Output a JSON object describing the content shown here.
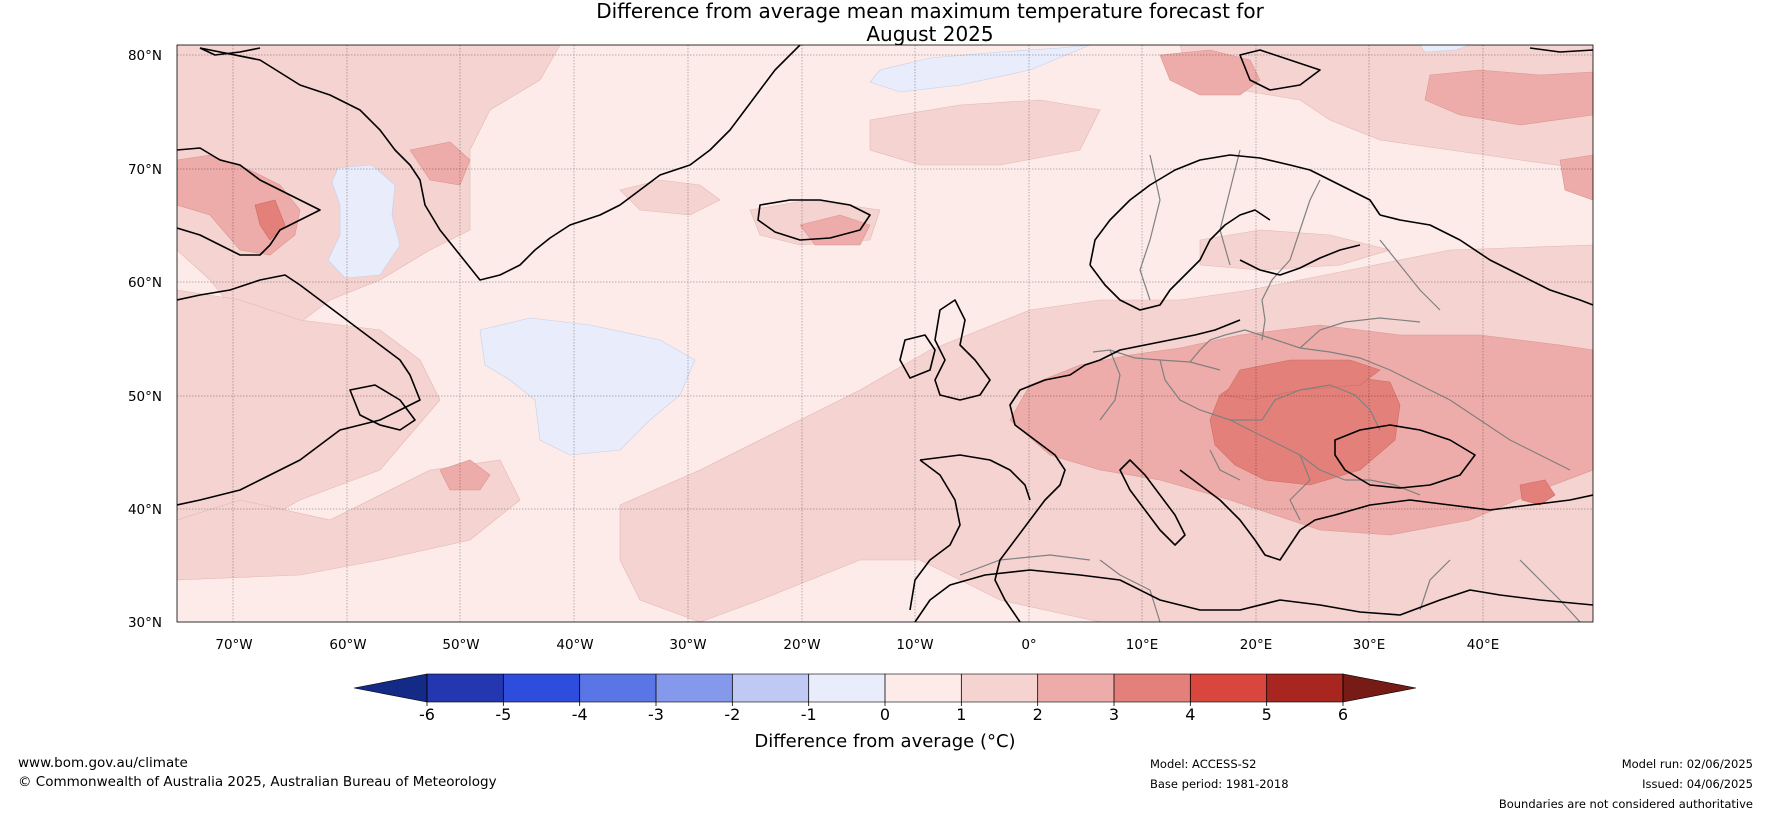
{
  "title": {
    "line1": "Difference from average mean maximum temperature forecast for",
    "line2": "August 2025"
  },
  "map": {
    "lat_labels": [
      "80°N",
      "70°N",
      "60°N",
      "50°N",
      "40°N",
      "30°N"
    ],
    "lon_labels": [
      "70°W",
      "60°W",
      "50°W",
      "40°W",
      "30°W",
      "20°W",
      "10°W",
      "0°",
      "10°E",
      "20°E",
      "30°E",
      "40°E"
    ],
    "colors": {
      "cool_-1_0": "#e8ecfb",
      "warm_0_1": "#fcebe9",
      "warm_1_2": "#f5d3d1",
      "warm_2_3": "#edaca9",
      "warm_3_4": "#e4807a",
      "coast": "#000000",
      "border": "#808080"
    }
  },
  "colorbar": {
    "title": "Difference from average (°C)",
    "ticks": [
      "-6",
      "-5",
      "-4",
      "-3",
      "-2",
      "-1",
      "0",
      "1",
      "2",
      "3",
      "4",
      "5",
      "6"
    ],
    "colors": [
      "#132a86",
      "#2338b0",
      "#2e4ddd",
      "#5a75e6",
      "#8599ec",
      "#bfc9f4",
      "#e8ecfb",
      "#fcebe9",
      "#f5d3d1",
      "#edaca9",
      "#e4807a",
      "#d9463d",
      "#a8261f",
      "#771b17"
    ]
  },
  "footer": {
    "website": "www.bom.gov.au/climate",
    "copyright": "© Commonwealth of Australia 2025, Australian Bureau of Meteorology",
    "model": "Model: ACCESS-S2",
    "base_period": "Base period: 1981-2018",
    "model_run": "Model run: 02/06/2025",
    "issued": "Issued: 04/06/2025",
    "disclaimer": "Boundaries are not considered authoritative"
  }
}
